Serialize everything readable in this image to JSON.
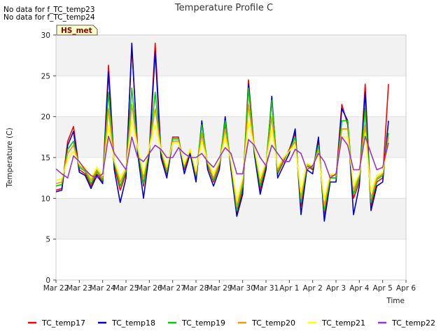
{
  "nodata_messages": [
    "No data for f_TC_temp23",
    "No data for f_TC_temp24"
  ],
  "chart_data": {
    "type": "line",
    "title": "Temperature Profile C",
    "xlabel": "Time",
    "ylabel": "Temperature (C)",
    "ylim": [
      0,
      30
    ],
    "yticks": [
      0,
      5,
      10,
      15,
      20,
      25,
      30
    ],
    "xlim_days": [
      0,
      15
    ],
    "xtick_labels": [
      "Mar 22",
      "Mar 23",
      "Mar 24",
      "Mar 25",
      "Mar 26",
      "Mar 27",
      "Mar 28",
      "Mar 29",
      "Mar 30",
      "Mar 31",
      "Apr 1",
      "Apr 2",
      "Apr 3",
      "Apr 4",
      "Apr 5",
      "Apr 6"
    ],
    "grid": "horizontal alternating bands",
    "legend_position": "bottom",
    "annotation": "HS_met",
    "x": [
      "Mar 22 00:00",
      "Mar 22 06:00",
      "Mar 22 12:00",
      "Mar 22 18:00",
      "Mar 23 00:00",
      "Mar 23 06:00",
      "Mar 23 12:00",
      "Mar 23 18:00",
      "Mar 24 00:00",
      "Mar 24 06:00",
      "Mar 24 12:00",
      "Mar 24 18:00",
      "Mar 25 00:00",
      "Mar 25 06:00",
      "Mar 25 12:00",
      "Mar 25 18:00",
      "Mar 26 00:00",
      "Mar 26 06:00",
      "Mar 26 12:00",
      "Mar 26 18:00",
      "Mar 27 00:00",
      "Mar 27 06:00",
      "Mar 27 12:00",
      "Mar 27 18:00",
      "Mar 28 00:00",
      "Mar 28 06:00",
      "Mar 28 12:00",
      "Mar 28 18:00",
      "Mar 29 00:00",
      "Mar 29 06:00",
      "Mar 29 12:00",
      "Mar 29 18:00",
      "Mar 30 00:00",
      "Mar 30 06:00",
      "Mar 30 12:00",
      "Mar 30 18:00",
      "Mar 31 00:00",
      "Mar 31 06:00",
      "Mar 31 12:00",
      "Mar 31 18:00",
      "Apr 1 00:00",
      "Apr 1 06:00",
      "Apr 1 12:00",
      "Apr 1 18:00",
      "Apr 2 00:00",
      "Apr 2 06:00",
      "Apr 2 12:00",
      "Apr 2 18:00",
      "Apr 3 00:00",
      "Apr 3 06:00",
      "Apr 3 12:00",
      "Apr 3 18:00",
      "Apr 4 00:00",
      "Apr 4 06:00",
      "Apr 4 12:00",
      "Apr 4 18:00",
      "Apr 5 00:00",
      "Apr 5 06:00"
    ],
    "series": [
      {
        "name": "TC_temp17",
        "color": "#ff0000",
        "values": [
          11.0,
          11.2,
          17.0,
          18.8,
          13.5,
          13.0,
          11.5,
          13.0,
          12.0,
          26.3,
          14.0,
          11.0,
          13.0,
          28.5,
          16.0,
          11.5,
          16.0,
          29.0,
          15.5,
          13.0,
          17.5,
          17.5,
          13.5,
          16.0,
          12.5,
          18.0,
          14.0,
          12.0,
          14.0,
          19.0,
          14.0,
          8.0,
          11.0,
          24.5,
          16.0,
          11.0,
          14.0,
          22.0,
          13.0,
          14.5,
          16.0,
          18.0,
          9.0,
          14.0,
          13.5,
          17.0,
          8.0,
          12.5,
          12.5,
          21.5,
          19.0,
          10.0,
          12.0,
          24.0,
          9.0,
          12.0,
          12.5,
          24.0
        ]
      },
      {
        "name": "TC_temp18",
        "color": "#0000cc",
        "values": [
          10.8,
          11.0,
          16.5,
          18.2,
          13.2,
          12.8,
          11.2,
          12.8,
          11.8,
          25.5,
          13.5,
          9.5,
          12.5,
          29.0,
          15.5,
          10.0,
          15.5,
          28.0,
          15.0,
          12.5,
          17.0,
          17.0,
          13.0,
          15.5,
          12.0,
          19.5,
          13.5,
          11.5,
          13.5,
          20.0,
          13.5,
          7.8,
          10.5,
          24.0,
          15.5,
          10.5,
          13.5,
          22.5,
          12.5,
          14.0,
          15.5,
          18.5,
          8.0,
          13.5,
          13.0,
          17.5,
          7.2,
          12.0,
          12.0,
          21.0,
          19.5,
          8.0,
          11.5,
          23.0,
          8.5,
          11.5,
          12.0,
          19.5
        ]
      },
      {
        "name": "TC_temp19",
        "color": "#00cc00",
        "values": [
          11.5,
          11.7,
          16.0,
          17.0,
          13.8,
          13.3,
          11.8,
          13.3,
          12.2,
          23.0,
          14.3,
          11.5,
          13.3,
          23.5,
          16.0,
          11.8,
          16.0,
          23.0,
          15.8,
          13.2,
          17.3,
          17.3,
          13.8,
          16.0,
          12.8,
          19.0,
          14.2,
          12.2,
          14.2,
          19.5,
          14.2,
          8.5,
          11.5,
          23.5,
          16.0,
          11.5,
          14.2,
          22.0,
          13.2,
          14.7,
          15.8,
          17.5,
          9.5,
          14.0,
          13.7,
          16.5,
          8.5,
          12.5,
          12.5,
          19.5,
          19.5,
          10.5,
          12.5,
          21.0,
          9.5,
          12.3,
          12.8,
          18.0
        ]
      },
      {
        "name": "TC_temp20",
        "color": "#e69f00",
        "values": [
          11.8,
          12.0,
          15.5,
          16.5,
          14.0,
          13.5,
          12.2,
          13.5,
          12.5,
          21.0,
          14.5,
          12.0,
          13.5,
          21.5,
          16.2,
          12.5,
          16.2,
          21.0,
          16.0,
          13.5,
          17.0,
          17.0,
          14.0,
          16.0,
          13.0,
          18.0,
          14.3,
          12.5,
          14.3,
          18.5,
          14.3,
          9.0,
          12.0,
          21.5,
          16.2,
          12.0,
          14.3,
          20.0,
          13.5,
          14.8,
          15.8,
          17.0,
          10.0,
          14.2,
          13.8,
          16.0,
          9.0,
          12.8,
          12.8,
          18.5,
          18.5,
          11.0,
          12.8,
          19.0,
          10.0,
          12.5,
          13.0,
          17.5
        ]
      },
      {
        "name": "TC_temp21",
        "color": "#ffff00",
        "values": [
          12.2,
          12.4,
          14.8,
          15.8,
          14.2,
          13.8,
          12.5,
          13.8,
          12.8,
          19.0,
          14.6,
          12.5,
          13.8,
          19.5,
          16.3,
          13.0,
          16.3,
          19.0,
          16.0,
          13.8,
          16.8,
          16.8,
          14.2,
          16.0,
          13.3,
          17.0,
          14.5,
          13.0,
          14.5,
          17.5,
          14.5,
          9.8,
          12.5,
          19.5,
          16.3,
          12.5,
          14.5,
          18.5,
          13.8,
          15.0,
          15.8,
          16.5,
          10.8,
          14.3,
          14.0,
          15.5,
          9.8,
          13.0,
          13.0,
          17.5,
          17.5,
          11.5,
          13.0,
          18.0,
          10.8,
          12.8,
          13.2,
          16.8
        ]
      },
      {
        "name": "TC_temp22",
        "color": "#9933cc",
        "values": [
          13.6,
          13.0,
          12.5,
          15.2,
          14.5,
          13.5,
          12.8,
          12.5,
          13.0,
          17.6,
          15.5,
          14.5,
          13.5,
          17.5,
          15.0,
          14.5,
          15.5,
          16.5,
          16.0,
          15.0,
          15.0,
          16.2,
          15.5,
          15.0,
          15.0,
          15.5,
          14.5,
          13.8,
          15.0,
          16.2,
          15.5,
          13.0,
          13.0,
          17.2,
          16.5,
          15.0,
          14.0,
          16.5,
          15.5,
          14.5,
          14.5,
          16.0,
          15.5,
          13.5,
          14.0,
          15.5,
          14.5,
          12.5,
          13.0,
          17.5,
          16.5,
          13.5,
          13.5,
          17.6,
          15.5,
          13.5,
          13.8,
          16.8
        ]
      }
    ]
  }
}
